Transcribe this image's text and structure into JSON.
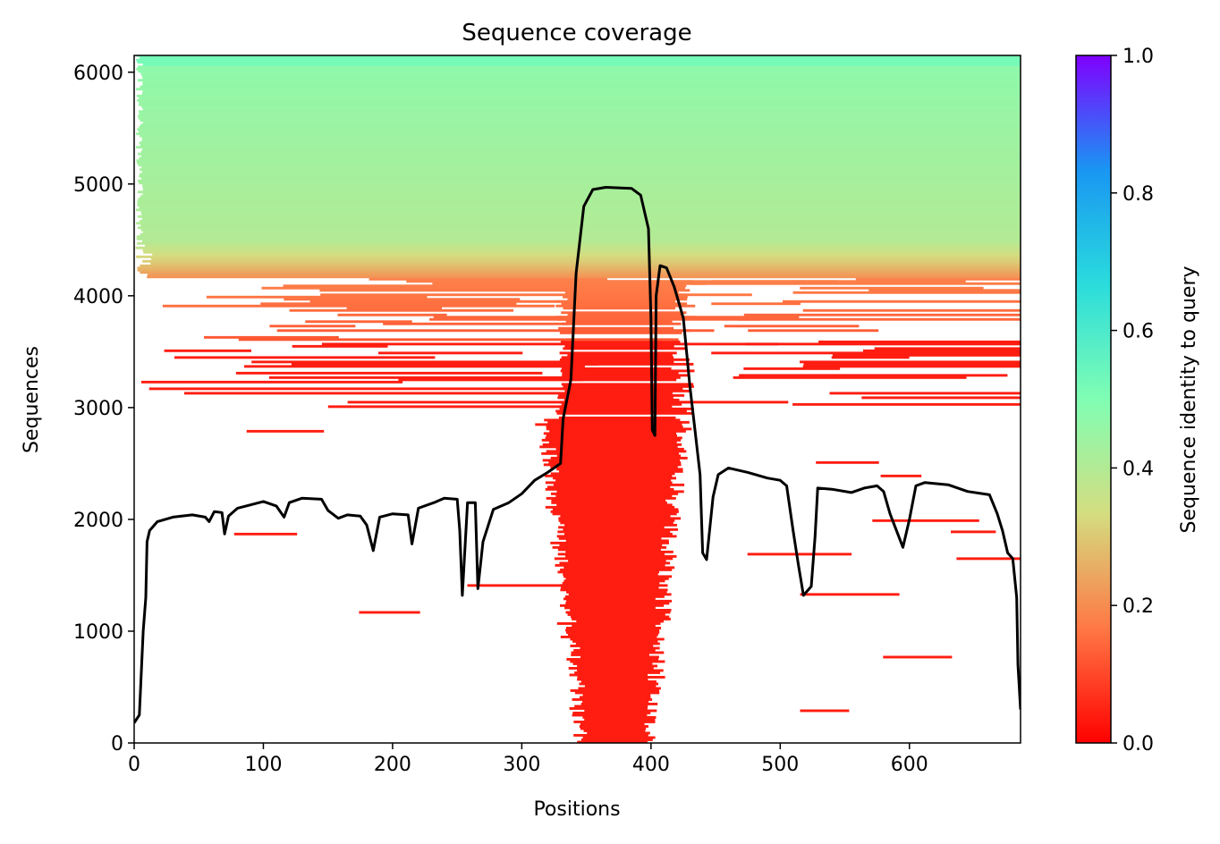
{
  "chart_data": {
    "type": "heatmap",
    "title": "Sequence coverage",
    "xlabel": "Positions",
    "ylabel": "Sequences",
    "xlim": [
      0,
      686
    ],
    "ylim": [
      0,
      6150
    ],
    "x_ticks": [
      0,
      100,
      200,
      300,
      400,
      500,
      600
    ],
    "y_ticks": [
      0,
      1000,
      2000,
      3000,
      4000,
      5000,
      6000
    ],
    "grid": false,
    "colorbar": {
      "label": "Sequence identity to query",
      "range": [
        0.0,
        1.0
      ],
      "ticks": [
        "0.0",
        "0.2",
        "0.4",
        "0.6",
        "0.8",
        "1.0"
      ],
      "colormap": "rainbow_r",
      "stops": [
        "#ff0000",
        "#ff7845",
        "#d4dd80",
        "#80feb3",
        "#2adcdc",
        "#1996f3",
        "#8000ff"
      ]
    },
    "coverage_line": {
      "color": "#000000",
      "points": [
        [
          0,
          180
        ],
        [
          4,
          250
        ],
        [
          7,
          1000
        ],
        [
          9,
          1300
        ],
        [
          10,
          1800
        ],
        [
          12,
          1900
        ],
        [
          18,
          1980
        ],
        [
          30,
          2020
        ],
        [
          45,
          2040
        ],
        [
          55,
          2020
        ],
        [
          58,
          1980
        ],
        [
          62,
          2070
        ],
        [
          68,
          2060
        ],
        [
          70,
          1870
        ],
        [
          73,
          2030
        ],
        [
          80,
          2100
        ],
        [
          100,
          2160
        ],
        [
          110,
          2120
        ],
        [
          116,
          2020
        ],
        [
          120,
          2150
        ],
        [
          130,
          2190
        ],
        [
          145,
          2180
        ],
        [
          150,
          2080
        ],
        [
          158,
          2010
        ],
        [
          165,
          2040
        ],
        [
          175,
          2030
        ],
        [
          180,
          1950
        ],
        [
          185,
          1720
        ],
        [
          190,
          2020
        ],
        [
          200,
          2050
        ],
        [
          212,
          2040
        ],
        [
          215,
          1780
        ],
        [
          220,
          2100
        ],
        [
          232,
          2150
        ],
        [
          240,
          2190
        ],
        [
          250,
          2180
        ],
        [
          252,
          1900
        ],
        [
          254,
          1320
        ],
        [
          258,
          2150
        ],
        [
          264,
          2150
        ],
        [
          266,
          1380
        ],
        [
          270,
          1800
        ],
        [
          278,
          2090
        ],
        [
          290,
          2150
        ],
        [
          300,
          2230
        ],
        [
          310,
          2350
        ],
        [
          320,
          2420
        ],
        [
          330,
          2500
        ],
        [
          332,
          2900
        ],
        [
          338,
          3250
        ],
        [
          342,
          4200
        ],
        [
          348,
          4800
        ],
        [
          355,
          4950
        ],
        [
          365,
          4970
        ],
        [
          385,
          4960
        ],
        [
          392,
          4900
        ],
        [
          398,
          4600
        ],
        [
          400,
          3800
        ],
        [
          401,
          2800
        ],
        [
          403,
          2750
        ],
        [
          404,
          4000
        ],
        [
          407,
          4270
        ],
        [
          412,
          4250
        ],
        [
          418,
          4080
        ],
        [
          425,
          3800
        ],
        [
          430,
          3200
        ],
        [
          434,
          2800
        ],
        [
          438,
          2400
        ],
        [
          440,
          1700
        ],
        [
          443,
          1640
        ],
        [
          448,
          2200
        ],
        [
          452,
          2400
        ],
        [
          460,
          2460
        ],
        [
          475,
          2420
        ],
        [
          490,
          2370
        ],
        [
          500,
          2350
        ],
        [
          505,
          2300
        ],
        [
          510,
          1900
        ],
        [
          514,
          1600
        ],
        [
          518,
          1320
        ],
        [
          524,
          1400
        ],
        [
          527,
          1850
        ],
        [
          529,
          2280
        ],
        [
          540,
          2270
        ],
        [
          555,
          2240
        ],
        [
          565,
          2280
        ],
        [
          575,
          2300
        ],
        [
          580,
          2250
        ],
        [
          585,
          2050
        ],
        [
          590,
          1900
        ],
        [
          595,
          1750
        ],
        [
          600,
          2000
        ],
        [
          605,
          2300
        ],
        [
          612,
          2330
        ],
        [
          630,
          2310
        ],
        [
          645,
          2250
        ],
        [
          662,
          2220
        ],
        [
          668,
          2050
        ],
        [
          672,
          1900
        ],
        [
          676,
          1700
        ],
        [
          680,
          1650
        ],
        [
          683,
          1300
        ],
        [
          684,
          700
        ],
        [
          686,
          300
        ]
      ]
    }
  }
}
